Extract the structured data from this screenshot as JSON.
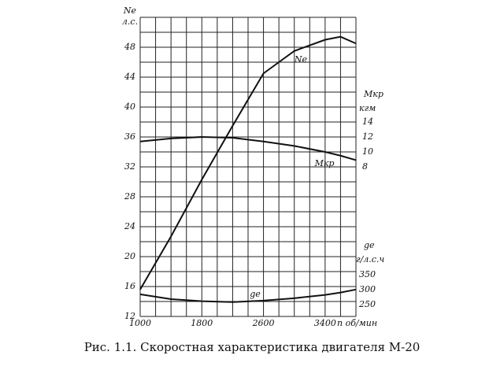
{
  "chart_data": {
    "type": "line",
    "caption": "Рис. 1.1. Скоростная характеристика двигателя М-20",
    "y_title": [
      "Ne",
      "л.с."
    ],
    "y2_title": [
      "Mкр",
      "кгм"
    ],
    "y3_title": [
      "ge",
      "г/л.с.ч"
    ],
    "x_title": "n об/мин",
    "x": [
      1000,
      1400,
      1800,
      2200,
      2600,
      3000,
      3400,
      3600,
      3800
    ],
    "xlim": [
      1000,
      3800
    ],
    "xticks": [
      1000,
      1800,
      2600,
      3400
    ],
    "x_gridlines": [
      1000,
      1200,
      1400,
      1600,
      1800,
      2000,
      2200,
      2400,
      2600,
      2800,
      3000,
      3200,
      3400,
      3600,
      3800
    ],
    "ylim": [
      12,
      52
    ],
    "yticks": [
      12,
      16,
      20,
      24,
      28,
      32,
      36,
      40,
      44,
      48
    ],
    "y_gridlines": [
      12,
      14,
      16,
      18,
      20,
      22,
      24,
      26,
      28,
      30,
      32,
      34,
      36,
      38,
      40,
      42,
      44,
      46,
      48,
      50,
      52
    ],
    "y2lim": [
      -12,
      28
    ],
    "y2ticks": [
      8,
      10,
      12,
      14
    ],
    "y3lim": [
      210,
      1210
    ],
    "y3ticks": [
      250,
      300,
      350
    ],
    "grid": true,
    "series": [
      {
        "name": "Ne",
        "axis": "y",
        "color": "#111111",
        "values": [
          15.6,
          22.7,
          30.3,
          37.5,
          44.5,
          47.5,
          49.0,
          49.4,
          48.5
        ]
      },
      {
        "name": "Mкр",
        "axis": "y2",
        "color": "#111111",
        "values": [
          11.4,
          11.8,
          12.0,
          11.9,
          11.4,
          10.8,
          10.0,
          9.5,
          8.9
        ]
      },
      {
        "name": "ge",
        "axis": "y3",
        "color": "#111111",
        "values": [
          284,
          268,
          261,
          258,
          263,
          271,
          282,
          290,
          300
        ]
      }
    ]
  }
}
